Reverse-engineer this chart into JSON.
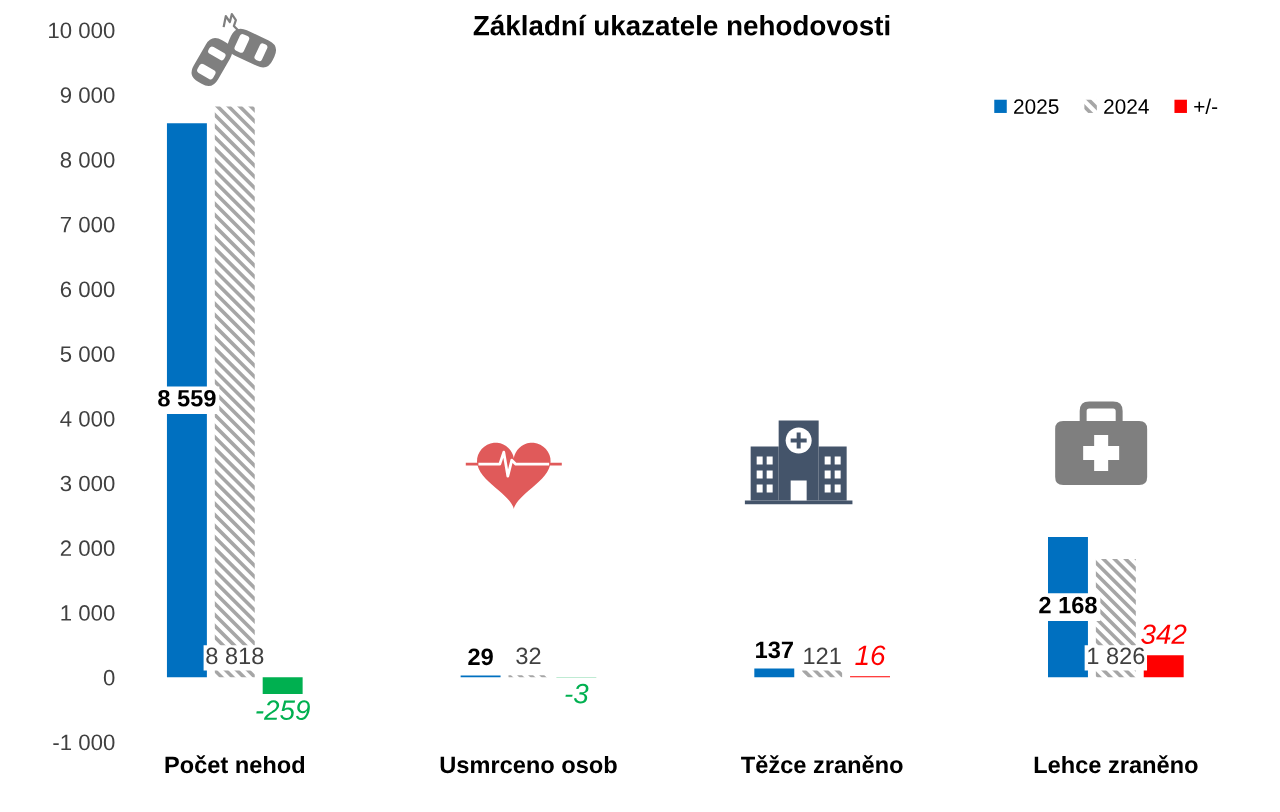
{
  "chart_data": {
    "type": "bar",
    "title": "Základní ukazatele nehodovosti",
    "categories": [
      "Počet nehod",
      "Usmrceno osob",
      "Těžce zraněno",
      "Lehce zraněno"
    ],
    "series": [
      {
        "name": "2025",
        "color": "#0070c0",
        "values": [
          8559,
          29,
          137,
          2168
        ],
        "value_labels": [
          "8 559",
          "29",
          "137",
          "2 168"
        ]
      },
      {
        "name": "2024",
        "color": "#a6a6a6",
        "values": [
          8818,
          32,
          121,
          1826
        ],
        "value_labels": [
          "8 818",
          "32",
          "121",
          "1 826"
        ]
      },
      {
        "name": "+/-",
        "color": "#ff0000",
        "colors": [
          "#00b050",
          "#00b050",
          "#ff0000",
          "#ff0000"
        ],
        "values": [
          -259,
          -3,
          16,
          342
        ],
        "value_labels": [
          "-259",
          "-3",
          "16",
          "342"
        ]
      }
    ],
    "ylim": [
      -1000,
      10000
    ],
    "yticks": [
      {
        "value": -1000,
        "label": "-1 000"
      },
      0,
      {
        "value": 1000,
        "label": "1 000"
      },
      {
        "value": 2000,
        "label": "2 000"
      },
      {
        "value": 3000,
        "label": "3 000"
      },
      {
        "value": 4000,
        "label": "4 000"
      },
      {
        "value": 5000,
        "label": "5 000"
      },
      {
        "value": 6000,
        "label": "6 000"
      },
      {
        "value": 7000,
        "label": "7 000"
      },
      {
        "value": 8000,
        "label": "8 000"
      },
      {
        "value": 9000,
        "label": "9 000"
      },
      {
        "value": 10000,
        "label": "10 000"
      }
    ],
    "grid": false,
    "legend": "top right"
  }
}
